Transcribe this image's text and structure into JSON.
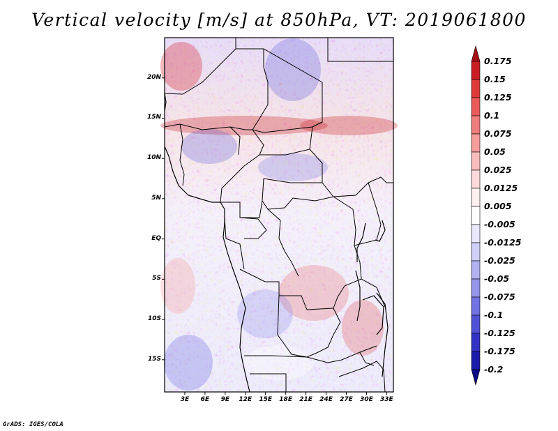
{
  "title": "Vertical velocity [m/s] at 850hPa, VT: 2019061800",
  "credit": "GrADS: IGES/COLA",
  "map": {
    "lat_range": [
      -19,
      25
    ],
    "lon_range": [
      0,
      34
    ],
    "lat_ticks": [
      "20N",
      "15N",
      "10N",
      "5N",
      "EQ",
      "5S",
      "10S",
      "15S"
    ],
    "lon_ticks": [
      "3E",
      "6E",
      "9E",
      "12E",
      "15E",
      "18E",
      "21E",
      "24E",
      "27E",
      "30E",
      "33E"
    ]
  },
  "colorbar": {
    "levels": [
      "0.175",
      "0.15",
      "0.125",
      "0.1",
      "0.075",
      "0.05",
      "0.025",
      "0.0125",
      "0.005",
      "-0.005",
      "-0.0125",
      "-0.025",
      "-0.05",
      "-0.075",
      "-0.1",
      "-0.125",
      "-0.175",
      "-0.2"
    ],
    "colors": [
      "#a50f15",
      "#c81e24",
      "#de3a3a",
      "#ea5a5a",
      "#f07d7d",
      "#f59c9c",
      "#f9bcbc",
      "#fcdada",
      "#fff0f0",
      "#ffffff",
      "#e8e8fb",
      "#cfcff7",
      "#b2b2f1",
      "#9494eb",
      "#7272e2",
      "#5050d6",
      "#3232c4",
      "#1c1caa",
      "#0a0a8a"
    ]
  }
}
